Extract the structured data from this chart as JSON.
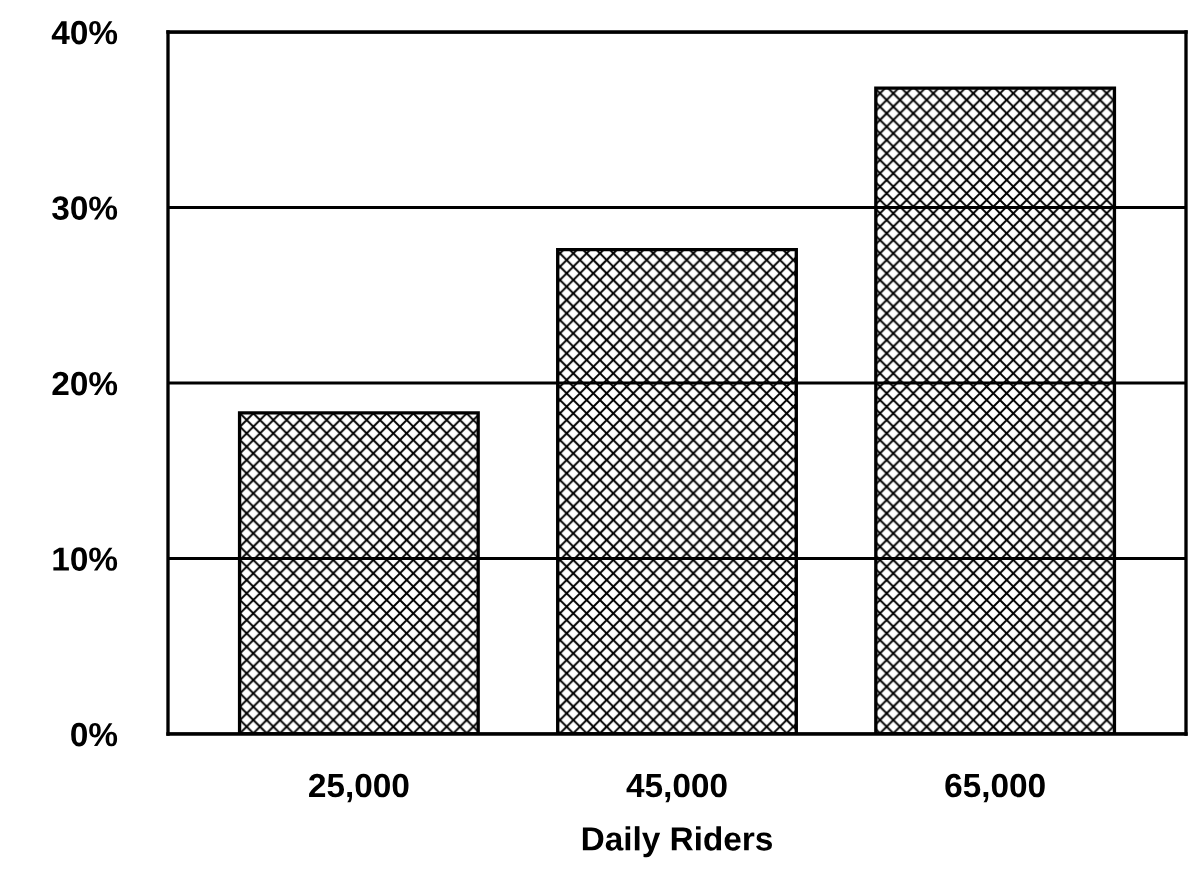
{
  "chart_data": {
    "type": "bar",
    "xlabel": "Daily Riders",
    "categories": [
      "25,000",
      "45,000",
      "65,000"
    ],
    "values": [
      18.3,
      27.6,
      36.8
    ],
    "color": "#000000",
    "ylim": [
      0,
      40
    ],
    "yticks": [
      {
        "value": 0,
        "label": "0%"
      },
      {
        "value": 10,
        "label": "10%"
      },
      {
        "value": 20,
        "label": "20%"
      },
      {
        "value": 30,
        "label": "30%"
      },
      {
        "value": 40,
        "label": "40%"
      }
    ],
    "grid": "y"
  }
}
